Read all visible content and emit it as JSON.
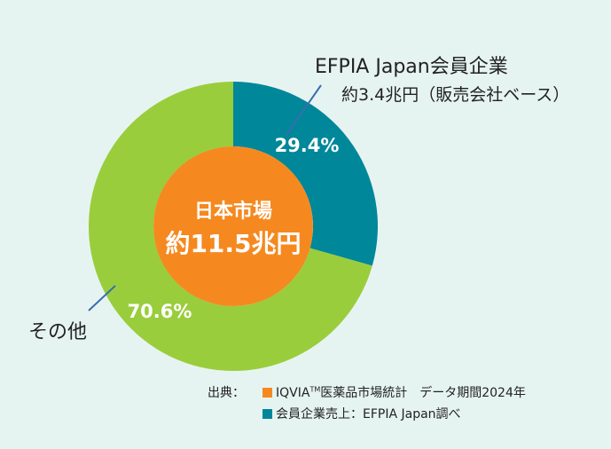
{
  "chart_data": {
    "type": "pie",
    "variant": "donut",
    "center_label": {
      "line1": "日本市場",
      "line2": "約11.5兆円"
    },
    "center_color": "#f5891f",
    "slices": [
      {
        "label": "EFPIA Japan会員企業",
        "sub_label": "約3.4兆円（販売会社ベース）",
        "value": 29.4,
        "display": "29.4%",
        "color": "#00879a"
      },
      {
        "label": "その他",
        "value": 70.6,
        "display": "70.6%",
        "color": "#9acd3c"
      }
    ]
  },
  "source": {
    "lead": "出典：",
    "line1_main": "IQVIA",
    "line1_tm": "TM",
    "line1_rest": "医薬品市場統計　データ期間2024年",
    "line1_color": "#f5891f",
    "line2": "会員企業売上：EFPIA Japan調べ",
    "line2_color": "#00879a"
  }
}
